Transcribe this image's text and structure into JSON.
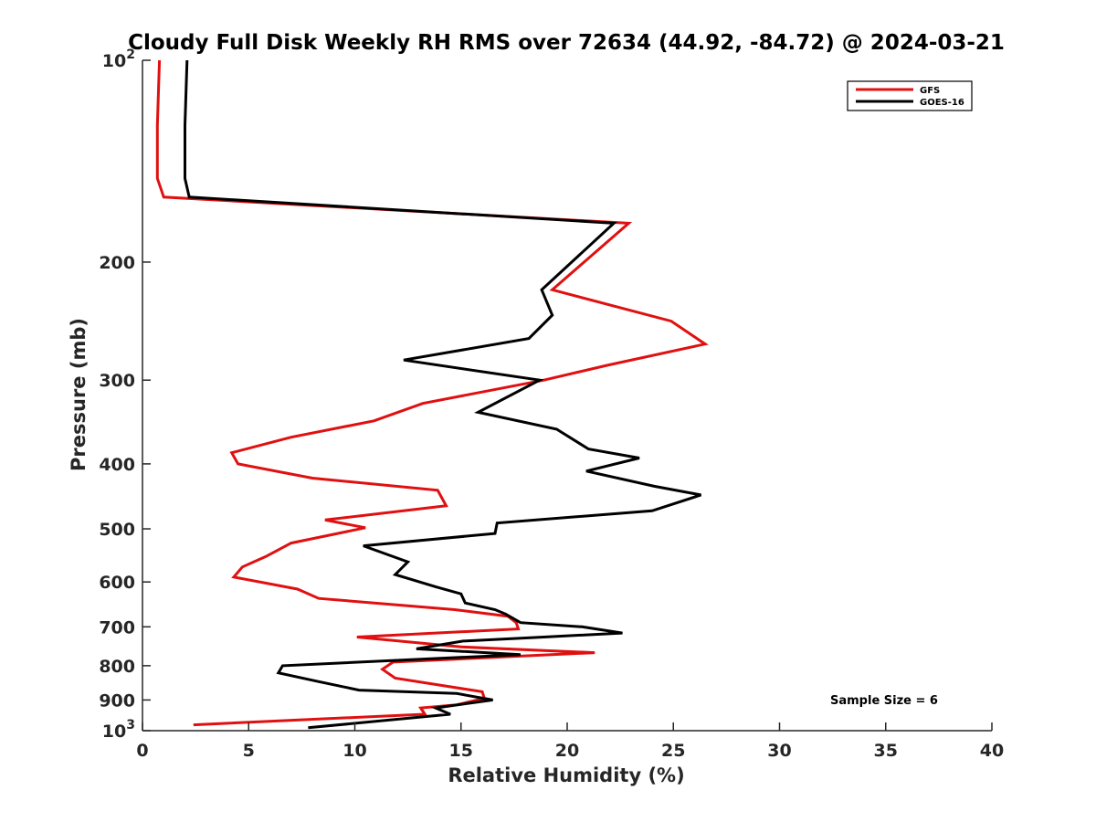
{
  "chart_data": {
    "type": "line",
    "title": "Cloudy Full Disk Weekly RH RMS over 72634 (44.92, -84.72) @ 2024-03-21",
    "xlabel": "Relative Humidity (%)",
    "ylabel": "Pressure (mb)",
    "xlim": [
      0,
      40
    ],
    "ylim": [
      100,
      1000
    ],
    "yscale": "log",
    "y_reversed": true,
    "grid": false,
    "legend_position": "top-right",
    "x_ticks": [
      "0",
      "5",
      "10",
      "15",
      "20",
      "25",
      "30",
      "35",
      "40"
    ],
    "y_ticks": [
      {
        "value": 100,
        "base": "10",
        "exp": "2"
      },
      {
        "value": 200,
        "label": "200"
      },
      {
        "value": 300,
        "label": "300"
      },
      {
        "value": 400,
        "label": "400"
      },
      {
        "value": 500,
        "label": "500"
      },
      {
        "value": 600,
        "label": "600"
      },
      {
        "value": 700,
        "label": "700"
      },
      {
        "value": 800,
        "label": "800"
      },
      {
        "value": 900,
        "label": "900"
      },
      {
        "value": 1000,
        "base": "10",
        "exp": "3"
      }
    ],
    "annotation": "Sample Size = 6",
    "series": [
      {
        "name": "GFS",
        "color": "#e01010",
        "points": [
          [
            0.8,
            100
          ],
          [
            0.7,
            125
          ],
          [
            0.7,
            150
          ],
          [
            1.0,
            160
          ],
          [
            22.9,
            175
          ],
          [
            19.3,
            220
          ],
          [
            24.9,
            245
          ],
          [
            26.5,
            265
          ],
          [
            21.9,
            285
          ],
          [
            18.9,
            300
          ],
          [
            13.2,
            325
          ],
          [
            10.9,
            345
          ],
          [
            7.0,
            365
          ],
          [
            4.2,
            385
          ],
          [
            4.5,
            400
          ],
          [
            8.0,
            420
          ],
          [
            13.9,
            438
          ],
          [
            14.3,
            462
          ],
          [
            8.6,
            485
          ],
          [
            10.5,
            498
          ],
          [
            7.0,
            525
          ],
          [
            5.8,
            550
          ],
          [
            4.7,
            570
          ],
          [
            4.3,
            590
          ],
          [
            7.3,
            615
          ],
          [
            8.3,
            635
          ],
          [
            14.7,
            660
          ],
          [
            17.2,
            675
          ],
          [
            17.6,
            690
          ],
          [
            17.7,
            705
          ],
          [
            10.1,
            725
          ],
          [
            15.0,
            750
          ],
          [
            21.3,
            765
          ],
          [
            11.8,
            790
          ],
          [
            11.3,
            810
          ],
          [
            11.9,
            835
          ],
          [
            16.0,
            875
          ],
          [
            16.1,
            895
          ],
          [
            14.8,
            915
          ],
          [
            13.1,
            925
          ],
          [
            13.3,
            945
          ],
          [
            2.4,
            980
          ]
        ]
      },
      {
        "name": "GOES-16",
        "color": "#000000",
        "points": [
          [
            2.1,
            100
          ],
          [
            2.0,
            125
          ],
          [
            2.0,
            150
          ],
          [
            2.2,
            160
          ],
          [
            22.2,
            175
          ],
          [
            18.8,
            220
          ],
          [
            19.3,
            240
          ],
          [
            18.2,
            260
          ],
          [
            12.3,
            280
          ],
          [
            18.7,
            300
          ],
          [
            15.8,
            335
          ],
          [
            19.5,
            355
          ],
          [
            21.0,
            380
          ],
          [
            23.4,
            392
          ],
          [
            20.9,
            410
          ],
          [
            24.1,
            432
          ],
          [
            26.3,
            445
          ],
          [
            24.0,
            470
          ],
          [
            16.7,
            490
          ],
          [
            16.6,
            508
          ],
          [
            10.4,
            530
          ],
          [
            12.5,
            560
          ],
          [
            11.9,
            585
          ],
          [
            13.8,
            610
          ],
          [
            15.0,
            625
          ],
          [
            15.2,
            645
          ],
          [
            16.6,
            660
          ],
          [
            17.1,
            670
          ],
          [
            17.8,
            690
          ],
          [
            20.7,
            700
          ],
          [
            22.6,
            715
          ],
          [
            18.9,
            725
          ],
          [
            15.1,
            735
          ],
          [
            12.9,
            755
          ],
          [
            17.8,
            770
          ],
          [
            6.6,
            800
          ],
          [
            6.4,
            820
          ],
          [
            8.3,
            845
          ],
          [
            10.2,
            870
          ],
          [
            14.8,
            880
          ],
          [
            16.5,
            900
          ],
          [
            13.8,
            925
          ],
          [
            14.5,
            945
          ],
          [
            7.8,
            990
          ]
        ]
      }
    ]
  }
}
